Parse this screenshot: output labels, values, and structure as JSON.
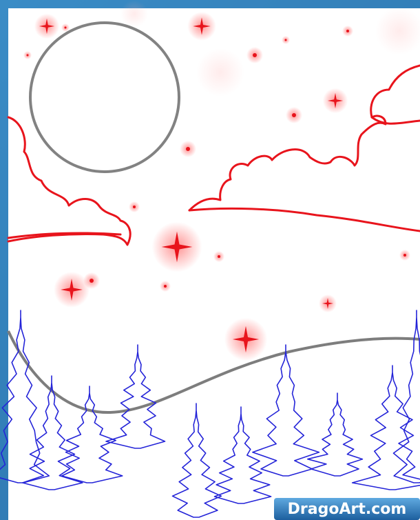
{
  "watermark": "DragoArt.com"
}
